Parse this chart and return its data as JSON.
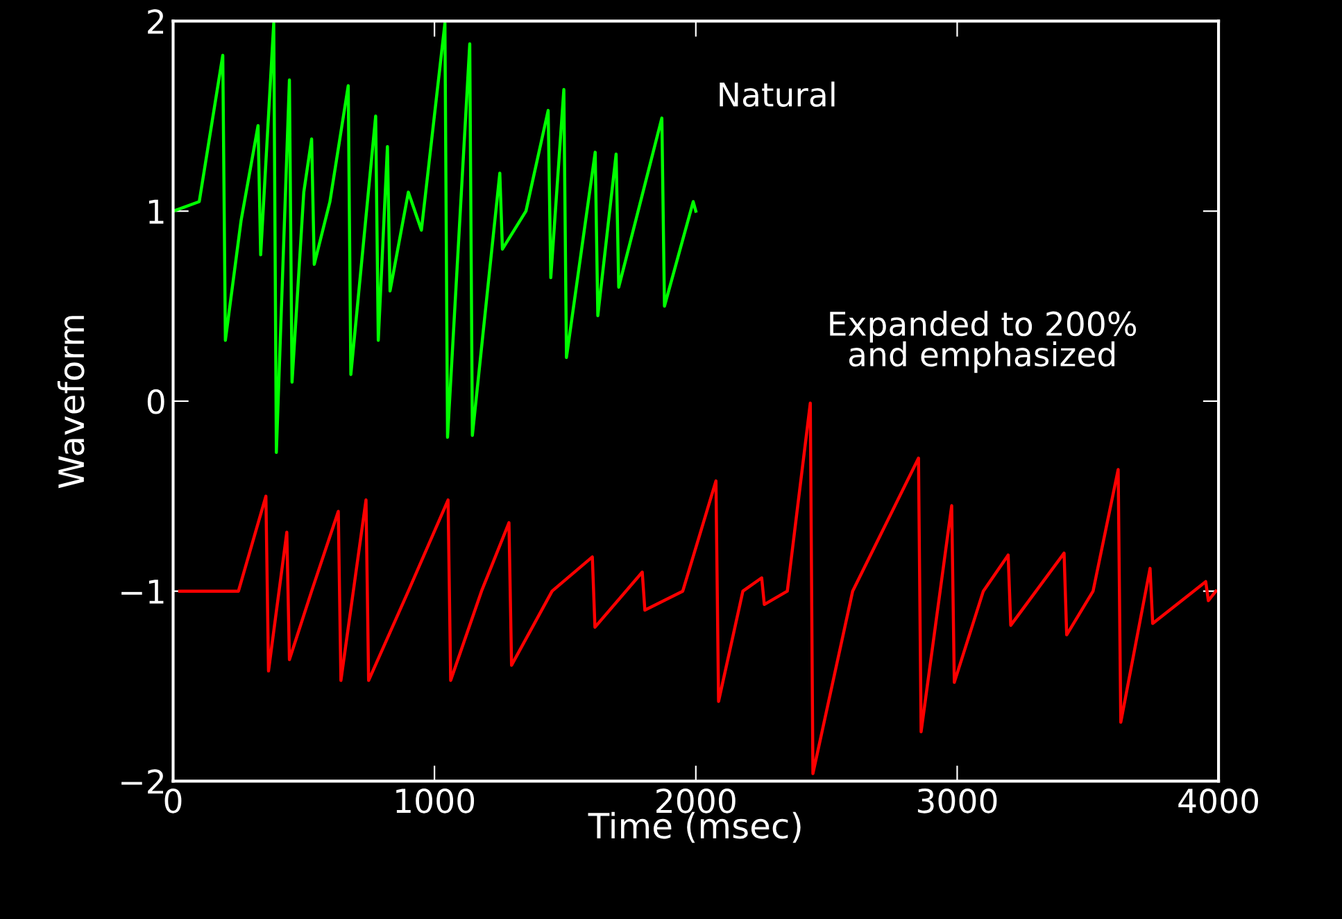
{
  "chart_data": {
    "type": "line",
    "xlabel": "Time (msec)",
    "ylabel": "Waveform",
    "xlim": [
      0,
      4000
    ],
    "ylim": [
      -2,
      2
    ],
    "xticks": [
      0,
      1000,
      2000,
      3000,
      4000
    ],
    "yticks": [
      {
        "value": -2,
        "label": "−2"
      },
      {
        "value": -1,
        "label": "−1"
      },
      0,
      1,
      2
    ],
    "grid": false,
    "legend": false,
    "marker": "none",
    "line_style": "solid",
    "series": [
      {
        "color": "#00ff00",
        "x": [
          0,
          100,
          190,
          200,
          260,
          325,
          335,
          385,
          395,
          445,
          455,
          500,
          530,
          540,
          600,
          670,
          680,
          775,
          785,
          820,
          830,
          900,
          950,
          1040,
          1050,
          1135,
          1145,
          1250,
          1260,
          1350,
          1435,
          1445,
          1495,
          1505,
          1615,
          1625,
          1695,
          1705,
          1870,
          1880,
          1990,
          2000
        ],
        "values": [
          1,
          1.05,
          1.82,
          0.32,
          0.95,
          1.45,
          0.77,
          1.99,
          -0.27,
          1.69,
          0.1,
          1.1,
          1.38,
          0.72,
          1.05,
          1.66,
          0.14,
          1.5,
          0.32,
          1.34,
          0.58,
          1.1,
          0.9,
          1.99,
          -0.19,
          1.88,
          -0.18,
          1.2,
          0.8,
          1,
          1.53,
          0.65,
          1.64,
          0.23,
          1.31,
          0.45,
          1.3,
          0.6,
          1.49,
          0.5,
          1.05,
          1
        ]
      },
      {
        "color": "#ff0000",
        "x": [
          25,
          250,
          355,
          365,
          435,
          445,
          530,
          632,
          642,
          738,
          748,
          900,
          1052,
          1062,
          1180,
          1285,
          1295,
          1450,
          1604,
          1614,
          1795,
          1805,
          1950,
          2077,
          2087,
          2180,
          2252,
          2262,
          2350,
          2438,
          2448,
          2600,
          2852,
          2862,
          2979,
          2989,
          3100,
          3195,
          3205,
          3409,
          3419,
          3520,
          3616,
          3626,
          3738,
          3748,
          3951,
          3961,
          3990
        ],
        "values": [
          -1,
          -1,
          -0.5,
          -1.42,
          -0.69,
          -1.36,
          -1,
          -0.58,
          -1.47,
          -0.52,
          -1.47,
          -1,
          -0.52,
          -1.47,
          -1,
          -0.64,
          -1.39,
          -1,
          -0.82,
          -1.19,
          -0.9,
          -1.1,
          -1,
          -0.42,
          -1.58,
          -1,
          -0.93,
          -1.07,
          -1,
          -0.01,
          -1.96,
          -1,
          -0.3,
          -1.74,
          -0.55,
          -1.48,
          -1,
          -0.81,
          -1.18,
          -0.8,
          -1.23,
          -1,
          -0.36,
          -1.69,
          -0.88,
          -1.17,
          -0.95,
          -1.05,
          -1
        ]
      }
    ],
    "annotations": [
      "Natural",
      "Expanded to 200%\nand emphasized"
    ]
  }
}
